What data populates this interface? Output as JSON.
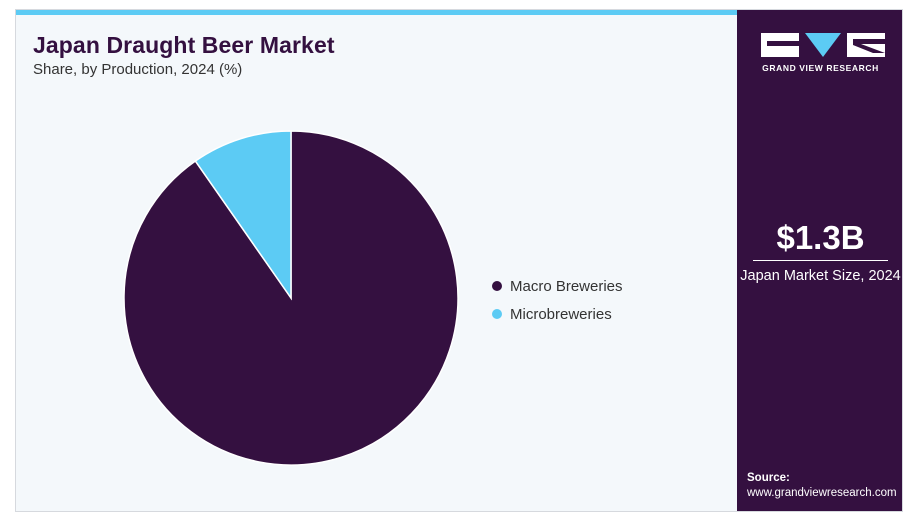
{
  "title": "Japan Draught Beer Market",
  "subtitle": "Share, by Production, 2024 (%)",
  "colors": {
    "macro": "#341040",
    "micro": "#5ccbf4",
    "sidebar": "#341040",
    "accent": "#5ccbf4"
  },
  "chart_data": {
    "type": "pie",
    "title": "Japan Draught Beer Market",
    "subtitle": "Share, by Production, 2024 (%)",
    "legend_position": "right",
    "slices": [
      {
        "name": "Macro Breweries",
        "value": 90.3,
        "color": "#341040"
      },
      {
        "name": "Microbreweries",
        "value": 9.7,
        "color": "#5ccbf4"
      }
    ]
  },
  "legend": [
    {
      "label": "Macro Breweries",
      "color": "#341040"
    },
    {
      "label": "Microbreweries",
      "color": "#5ccbf4"
    }
  ],
  "sidebar": {
    "logo_text": "GRAND VIEW RESEARCH",
    "market_value": "$1.3B",
    "market_label": "Japan Market Size, 2024",
    "source_title": "Source:",
    "source_url": "www.grandviewresearch.com"
  }
}
